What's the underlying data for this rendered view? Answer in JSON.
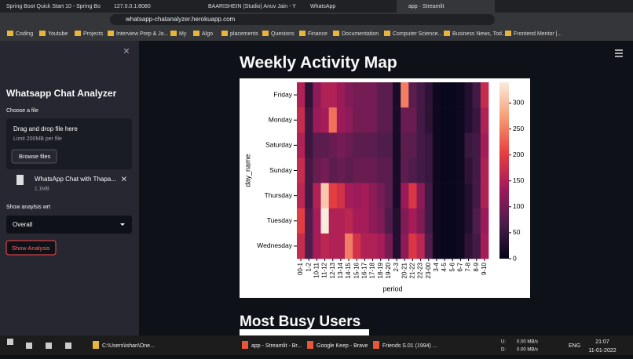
{
  "browser": {
    "tabs": [
      "Spring Boot Quick Start 10 - Spring Bo",
      "127.0.0.1:8080",
      "BAARISHEIN (Studio) Anuv Jain - Y",
      "WhatsApp",
      "app · Streamlit"
    ],
    "address": "whatsapp-chatanalyzer.herokuapp.com",
    "bookmarks": [
      "Coding",
      "Youtube",
      "Projects",
      "Interview Prep & Jo...",
      "My",
      "Algo",
      "placements",
      "Quesions",
      "Finance",
      "Documentation",
      "Computer Science...",
      "Business News, Tod...",
      "Frontend Mentor |..."
    ]
  },
  "sidebar": {
    "title": "Whatsapp Chat Analyzer",
    "choose": "Choose a file",
    "drop": "Drag and drop file here",
    "limit": "Limit 200MB per file",
    "browse": "Browse files",
    "file": "WhatsApp Chat with Thapa...",
    "size": "1.1MB",
    "wrt": "Show anaylsis wrt",
    "select": "Overall",
    "button": "Show Analysis"
  },
  "main": {
    "heading": "Weekly Activity Map",
    "next_heading": "Most Busy Users"
  },
  "chart_data": {
    "type": "heatmap",
    "xlabel": "period",
    "ylabel": "day_name",
    "categories": [
      "00-1",
      "1-2",
      "10-11",
      "11-12",
      "12-13",
      "13-14",
      "14-15",
      "15-16",
      "16-17",
      "17-18",
      "18-19",
      "19-20",
      "2-3",
      "20-21",
      "21-22",
      "22-23",
      "23-00",
      "3-4",
      "4-5",
      "5-6",
      "6-7",
      "7-8",
      "8-9",
      "9-10"
    ],
    "rows": [
      "Friday",
      "Monday",
      "Saturday",
      "Sunday",
      "Thursday",
      "Tuesday",
      "Wednesday"
    ],
    "values": [
      [
        150,
        40,
        120,
        150,
        150,
        130,
        110,
        100,
        100,
        100,
        80,
        80,
        20,
        250,
        80,
        60,
        40,
        10,
        5,
        5,
        10,
        30,
        60,
        170
      ],
      [
        170,
        50,
        130,
        140,
        240,
        130,
        120,
        100,
        100,
        100,
        80,
        80,
        20,
        90,
        90,
        60,
        40,
        10,
        5,
        5,
        10,
        30,
        50,
        150
      ],
      [
        150,
        50,
        80,
        80,
        90,
        100,
        90,
        80,
        80,
        80,
        70,
        70,
        20,
        80,
        80,
        60,
        50,
        10,
        5,
        5,
        10,
        50,
        60,
        140
      ],
      [
        170,
        60,
        90,
        100,
        80,
        90,
        80,
        90,
        90,
        90,
        80,
        80,
        20,
        80,
        70,
        60,
        50,
        10,
        5,
        5,
        10,
        40,
        60,
        150
      ],
      [
        160,
        60,
        150,
        310,
        200,
        180,
        140,
        130,
        140,
        120,
        100,
        80,
        20,
        130,
        190,
        120,
        60,
        10,
        5,
        5,
        10,
        30,
        60,
        150
      ],
      [
        200,
        70,
        140,
        340,
        150,
        150,
        160,
        140,
        140,
        120,
        110,
        70,
        30,
        110,
        140,
        110,
        60,
        10,
        5,
        5,
        10,
        30,
        70,
        130
      ],
      [
        170,
        70,
        140,
        160,
        150,
        150,
        250,
        180,
        150,
        150,
        140,
        100,
        30,
        120,
        190,
        160,
        70,
        10,
        5,
        5,
        10,
        40,
        60,
        140
      ]
    ],
    "clim": [
      0,
      340
    ],
    "cbar_ticks": [
      0,
      50,
      100,
      150,
      200,
      250,
      300
    ],
    "colorscale": [
      "#03051a",
      "#4c1d4b",
      "#a11a5b",
      "#e83f3f",
      "#f69c73",
      "#faebdd"
    ]
  },
  "taskbar": {
    "apps": [
      "C:\\Users\\ishan\\One...",
      "app - Streamlit - Br...",
      "Google Keep - Brave",
      "Friends S.01 (1994) ..."
    ],
    "drive_u": "U:",
    "drive_d": "D:",
    "up": "0.00 MB/s",
    "down": "0.00 MB/s",
    "lang": "ENG",
    "time": "21:07",
    "date": "11-01-2022"
  }
}
